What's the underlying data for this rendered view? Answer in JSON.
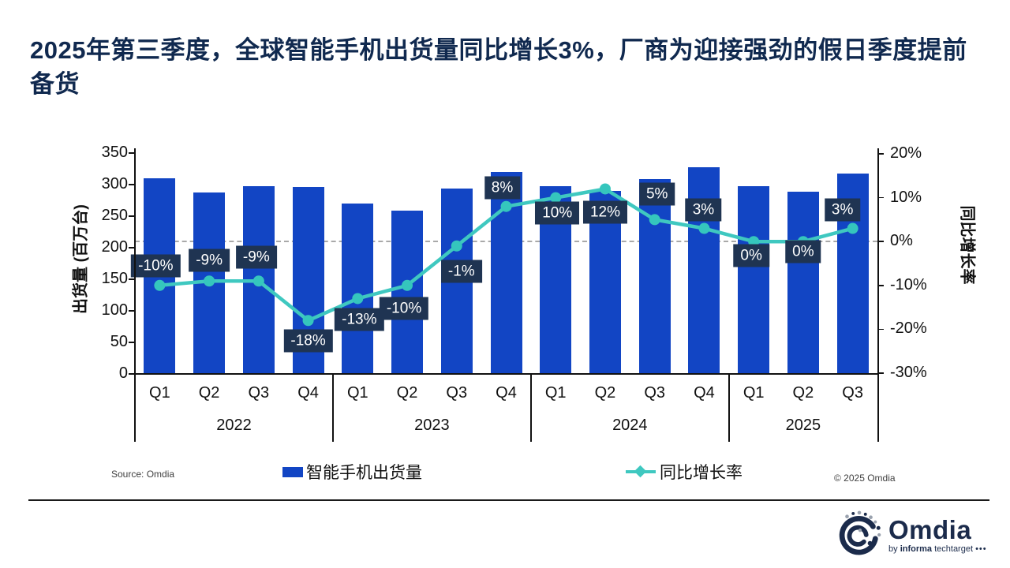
{
  "title": "2025年第三季度，全球智能手机出货量同比增长3%，厂商为迎接强劲的假日季度提前备货",
  "source": "Source: Omdia",
  "copyright": "© 2025 Omdia",
  "logo": {
    "name": "Omdia",
    "byline_by": "by",
    "byline_brand": "informa",
    "byline_rest": "techtarget",
    "dots": "•••"
  },
  "chart_data": {
    "type": "bar-line-combo",
    "quarters": [
      "Q1",
      "Q2",
      "Q3",
      "Q4",
      "Q1",
      "Q2",
      "Q3",
      "Q4",
      "Q1",
      "Q2",
      "Q3",
      "Q4",
      "Q1",
      "Q2",
      "Q3"
    ],
    "year_groups": [
      {
        "label": "2022",
        "span": 4
      },
      {
        "label": "2023",
        "span": 4
      },
      {
        "label": "2024",
        "span": 4
      },
      {
        "label": "2025",
        "span": 3
      }
    ],
    "series": [
      {
        "name": "智能手机出货量",
        "kind": "bar",
        "axis": "left",
        "values": [
          310,
          287,
          297,
          296,
          270,
          259,
          294,
          320,
          297,
          290,
          309,
          328,
          297,
          289,
          318
        ]
      },
      {
        "name": "同比增长率",
        "kind": "line",
        "axis": "right",
        "values": [
          -10,
          -9,
          -9,
          -18,
          -13,
          -10,
          -1,
          8,
          10,
          12,
          5,
          3,
          0,
          0,
          3
        ],
        "labels": [
          "-10%",
          "-9%",
          "-9%",
          "-18%",
          "-13%",
          "-10%",
          "-1%",
          "8%",
          "10%",
          "12%",
          "5%",
          "3%",
          "0%",
          "0%",
          "3%"
        ],
        "label_offsets": [
          [
            -5,
            -25
          ],
          [
            0,
            -26
          ],
          [
            -3,
            -30
          ],
          [
            0,
            26
          ],
          [
            2,
            27
          ],
          [
            -4,
            29
          ],
          [
            6,
            32
          ],
          [
            -5,
            -24
          ],
          [
            2,
            19
          ],
          [
            0,
            30
          ],
          [
            3,
            -32
          ],
          [
            -1,
            -24
          ],
          [
            -3,
            18
          ],
          [
            0,
            13
          ],
          [
            -13,
            -24
          ]
        ]
      }
    ],
    "left_axis": {
      "title": "出货量 (百万台)",
      "ticks": [
        350,
        300,
        250,
        200,
        150,
        100,
        50,
        0
      ],
      "range": [
        0,
        350
      ]
    },
    "right_axis": {
      "title": "同比增长率",
      "ticks": [
        "20%",
        "10%",
        "0%",
        "-10%",
        "-20%",
        "-30%"
      ],
      "range": [
        -30,
        20
      ]
    },
    "gridline_at_percent": 0,
    "legend_position": "bottom",
    "colors": {
      "bar": "#1245C4",
      "line": "#3FC8C0",
      "marker": "#35C6BD",
      "label_bg": "#1F3452",
      "label_text": "#FFFFFF",
      "dashed_gridline": "#A9A9A9",
      "title_navy": "#10294F"
    }
  }
}
